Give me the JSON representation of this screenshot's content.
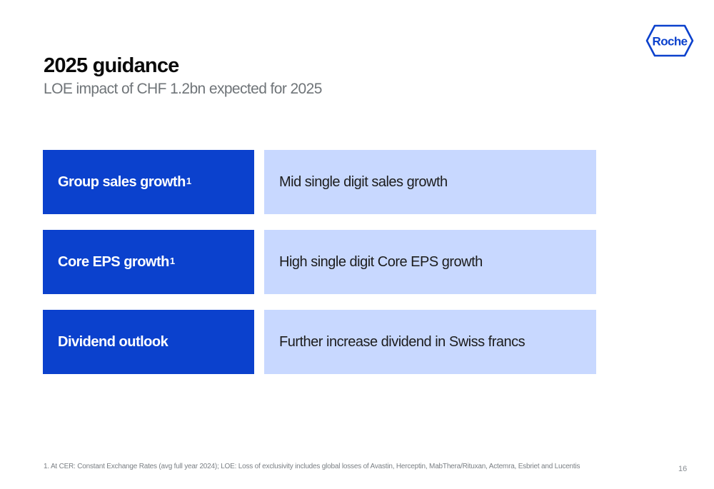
{
  "brand": {
    "logo_text": "Roche",
    "color": "#0b41cd"
  },
  "header": {
    "title": "2025 guidance",
    "subtitle": "LOE impact of CHF 1.2bn expected for 2025"
  },
  "rows": [
    {
      "label": "Group sales growth",
      "footnote_marker": "1",
      "value": "Mid single digit sales growth"
    },
    {
      "label": "Core EPS growth",
      "footnote_marker": "1",
      "value": "High single digit Core EPS growth"
    },
    {
      "label": "Dividend outlook",
      "footnote_marker": "",
      "value": "Further increase dividend in Swiss francs"
    }
  ],
  "colors": {
    "label_bg": "#0b41cd",
    "value_bg": "#c8d8ff"
  },
  "footer": {
    "footnote": "1. At CER: Constant Exchange Rates (avg full year 2024); LOE: Loss of exclusivity includes global losses of Avastin, Herceptin, MabThera/Rituxan, Actemra, Esbriet and Lucentis",
    "page_number": "16"
  }
}
